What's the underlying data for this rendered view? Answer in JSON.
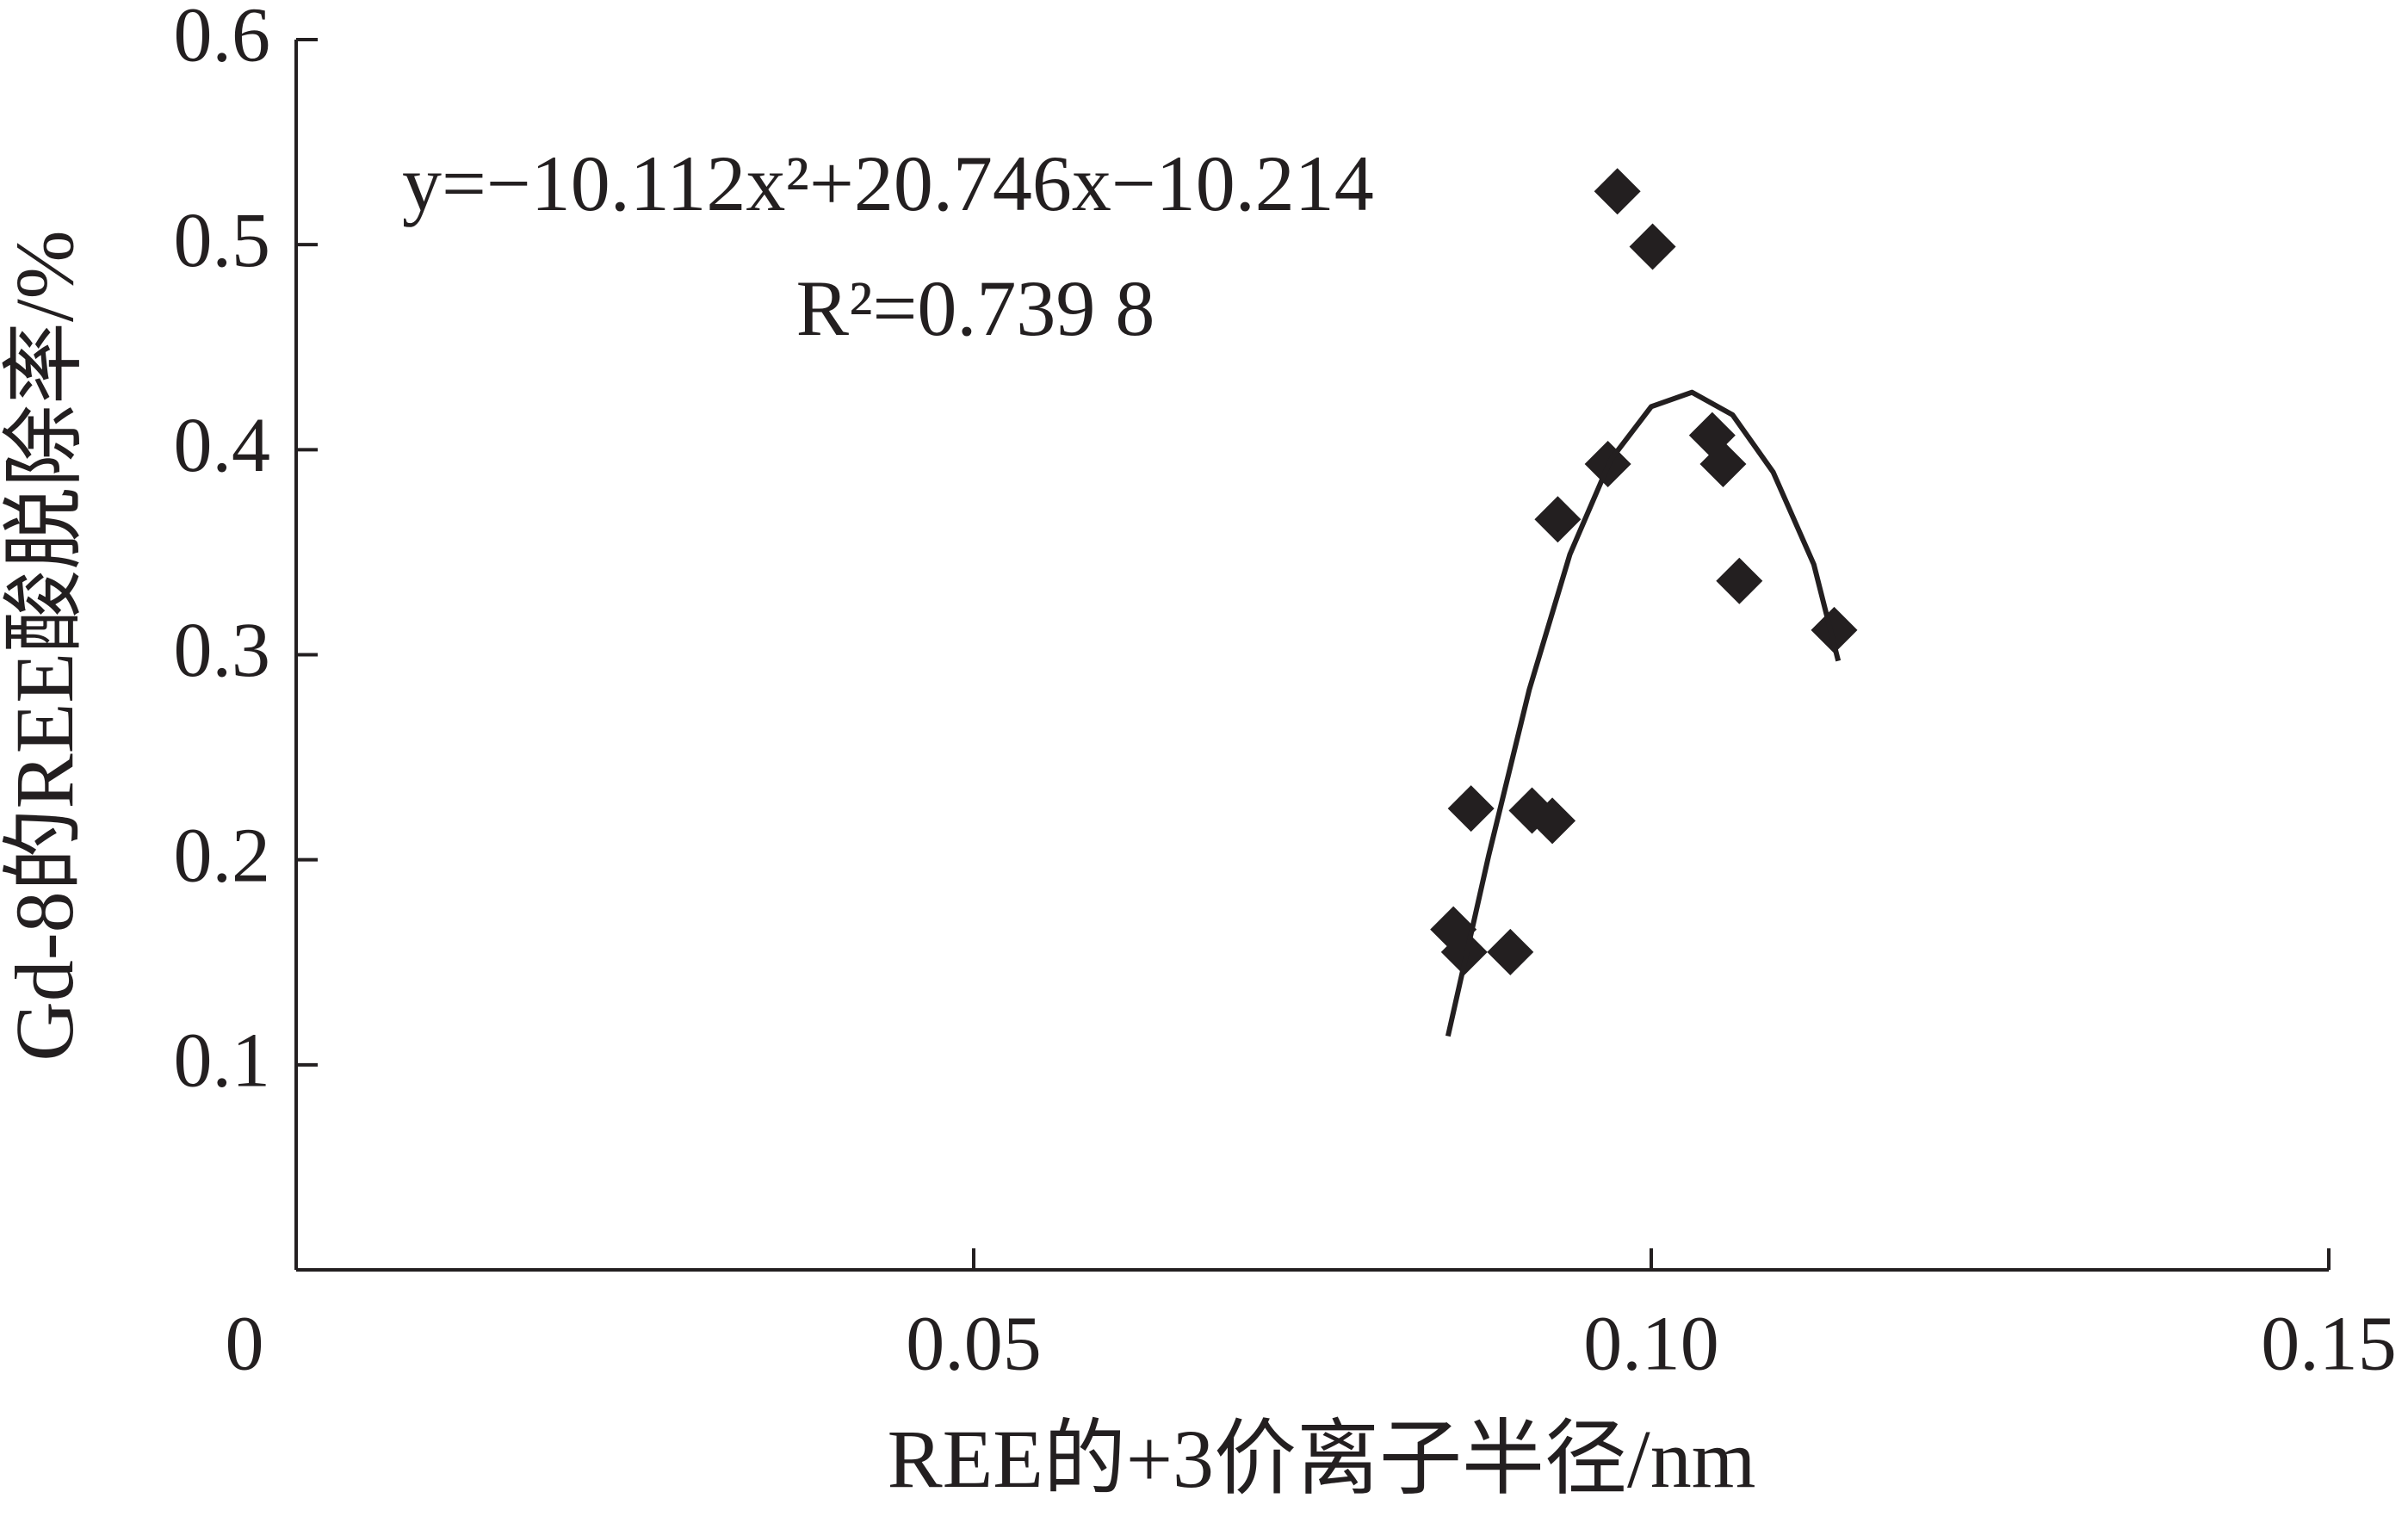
{
  "chart_data": {
    "type": "scatter",
    "x_label": "REE的+3价离子半径/nm",
    "y_label": "Gd-8的REE酸脱除率/%",
    "annotations": [
      "y=−10.112x²+20.746x−10.214",
      "R²=0.739 8"
    ],
    "xlim": [
      0,
      0.15
    ],
    "ylim": [
      0,
      0.6
    ],
    "xticks": [
      0,
      0.05,
      {
        "value": 0.1,
        "label": "0.10"
      },
      0.15
    ],
    "yticks": [
      0.1,
      0.2,
      0.3,
      0.4,
      0.5,
      0.6
    ],
    "series": [
      {
        "type": "scatter",
        "marker": "diamond",
        "color": "#231f20",
        "x": [
          0.0854,
          0.0862,
          0.0867,
          0.0896,
          0.0912,
          0.0927,
          0.0931,
          0.0968,
          0.0975,
          0.1001,
          0.1045,
          0.1053,
          0.1065,
          0.1135
        ],
        "values": [
          0.166,
          0.155,
          0.225,
          0.155,
          0.224,
          0.219,
          0.366,
          0.393,
          0.526,
          0.499,
          0.407,
          0.393,
          0.336,
          0.312
        ]
      },
      {
        "type": "line",
        "color": "#231f20",
        "x": [
          0.085,
          0.088,
          0.091,
          0.094,
          0.097,
          0.1,
          0.103,
          0.106,
          0.109,
          0.112,
          0.1138
        ],
        "values": [
          0.114,
          0.202,
          0.283,
          0.349,
          0.395,
          0.421,
          0.428,
          0.417,
          0.389,
          0.344,
          0.297
        ]
      }
    ]
  }
}
